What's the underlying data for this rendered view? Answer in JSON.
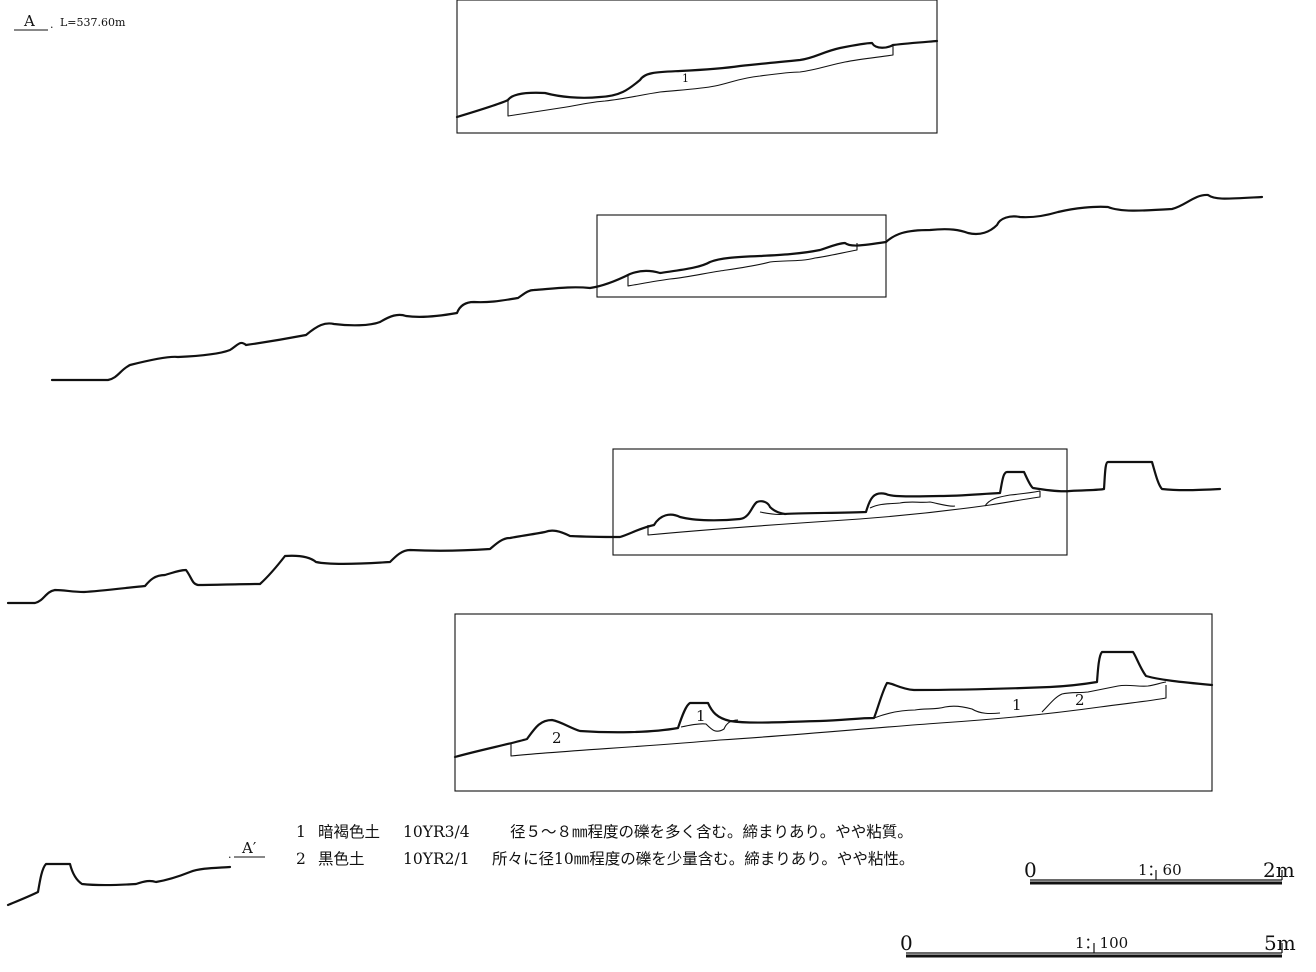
{
  "point_a": {
    "label": "A",
    "elevation": "L=537.60m"
  },
  "point_a_prime": {
    "label": "A′"
  },
  "layer_labels": {
    "detail1_layer1": "1",
    "detail3_layer1a": "1",
    "detail3_layer1b": "1",
    "detail3_layer2a": "2",
    "detail3_layer2b": "2"
  },
  "legend": [
    {
      "num": "1",
      "name": "暗褐色土",
      "color": "10YR3/4",
      "desc": "径５～８㎜程度の礫を多く含む。締まりあり。やや粘質。"
    },
    {
      "num": "2",
      "name": "黒色土",
      "color": "10YR2/1",
      "desc": "所々に径10㎜程度の礫を少量含む。締まりあり。やや粘性。"
    }
  ],
  "scale_60": {
    "zero": "0",
    "ratio": "1：60",
    "end": "2m"
  },
  "scale_100": {
    "zero": "0",
    "ratio": "1：100",
    "end": "5m"
  }
}
